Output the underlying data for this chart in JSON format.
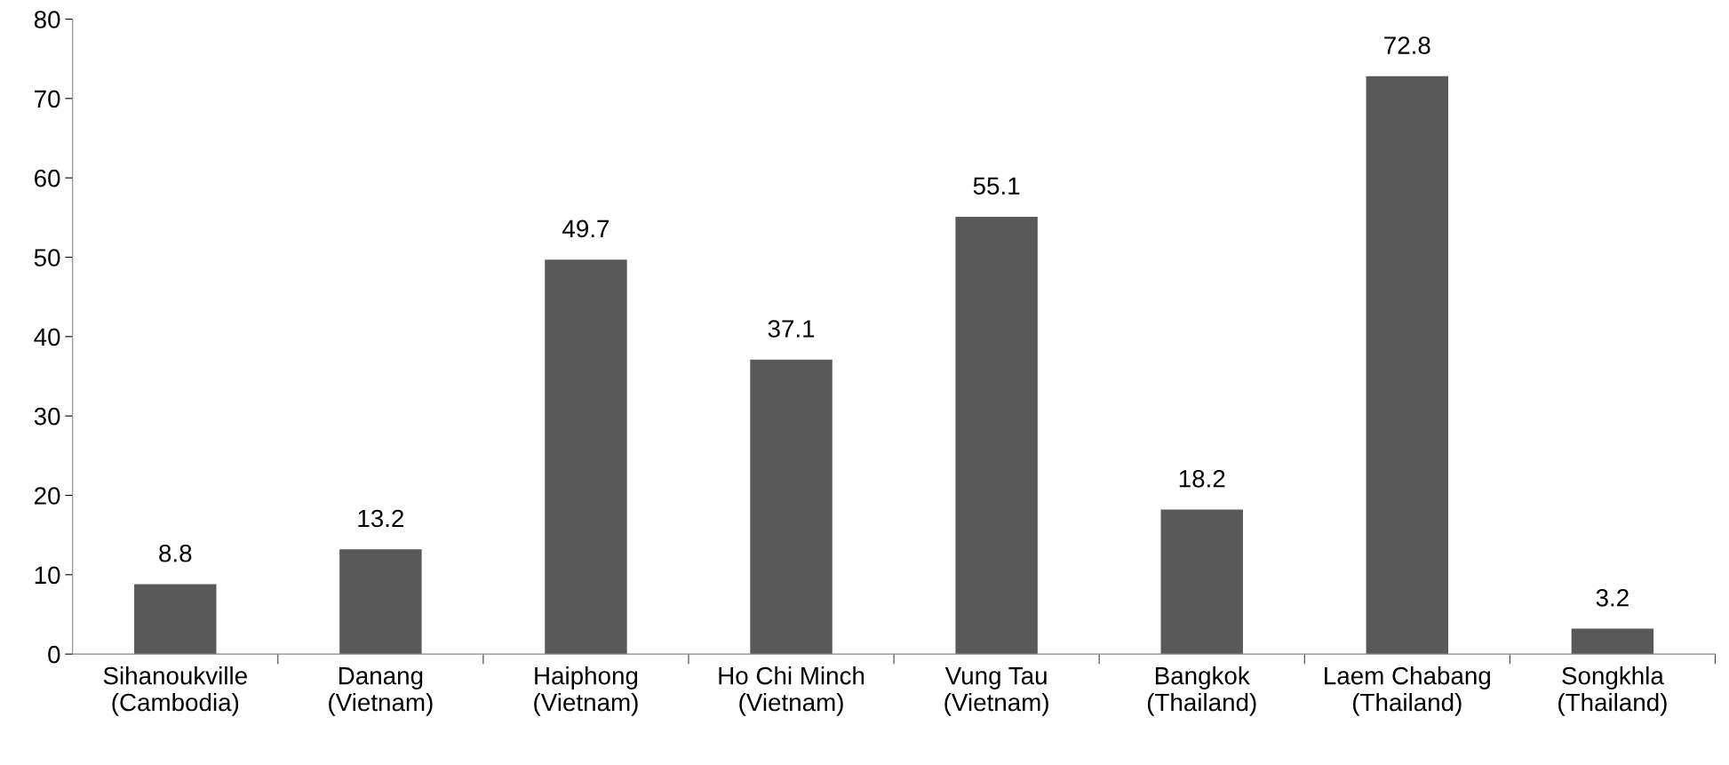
{
  "chart_data": {
    "type": "bar",
    "categories": [
      "Sihanoukville\n(Cambodia)",
      "Danang\n(Vietnam)",
      "Haiphong\n(Vietnam)",
      "Ho Chi Minch\n(Vietnam)",
      "Vung Tau\n(Vietnam)",
      "Bangkok\n(Thailand)",
      "Laem Chabang\n(Thailand)",
      "Songkhla\n(Thailand)"
    ],
    "values": [
      8.8,
      13.2,
      49.7,
      37.1,
      55.1,
      18.2,
      72.8,
      3.2
    ],
    "color": "#595959",
    "ylim": [
      0,
      80
    ],
    "yticks": [
      0,
      10,
      20,
      30,
      40,
      50,
      60,
      70,
      80
    ],
    "grid": false,
    "legend": false,
    "data_labels": true
  }
}
